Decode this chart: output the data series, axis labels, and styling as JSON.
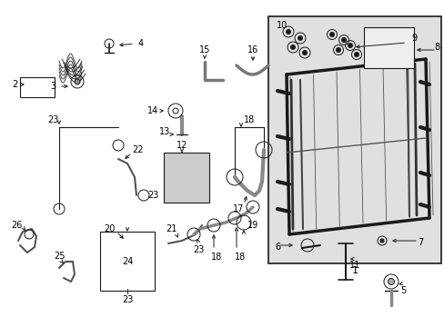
{
  "bg_color": "#ffffff",
  "shaded_bg": "#e0e0e0",
  "line_color": "#1a1a1a",
  "fig_width": 4.89,
  "fig_height": 3.6,
  "dpi": 100
}
